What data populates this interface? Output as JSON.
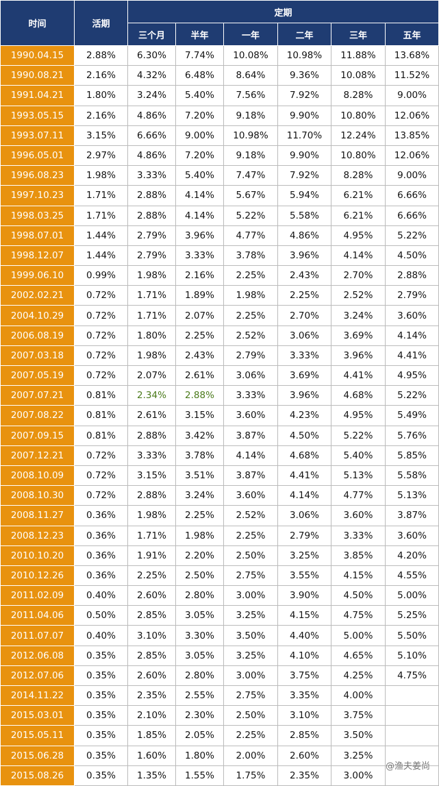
{
  "header": {
    "time": "时间",
    "demand": "活期",
    "fixed": "定期",
    "terms": [
      "三个月",
      "半年",
      "一年",
      "二年",
      "三年",
      "五年"
    ]
  },
  "table": {
    "rows": [
      [
        "1990.04.15",
        "2.88%",
        "6.30%",
        "7.74%",
        "10.08%",
        "10.98%",
        "11.88%",
        "13.68%"
      ],
      [
        "1990.08.21",
        "2.16%",
        "4.32%",
        "6.48%",
        "8.64%",
        "9.36%",
        "10.08%",
        "11.52%"
      ],
      [
        "1991.04.21",
        "1.80%",
        "3.24%",
        "5.40%",
        "7.56%",
        "7.92%",
        "8.28%",
        "9.00%"
      ],
      [
        "1993.05.15",
        "2.16%",
        "4.86%",
        "7.20%",
        "9.18%",
        "9.90%",
        "10.80%",
        "12.06%"
      ],
      [
        "1993.07.11",
        "3.15%",
        "6.66%",
        "9.00%",
        "10.98%",
        "11.70%",
        "12.24%",
        "13.85%"
      ],
      [
        "1996.05.01",
        "2.97%",
        "4.86%",
        "7.20%",
        "9.18%",
        "9.90%",
        "10.80%",
        "12.06%"
      ],
      [
        "1996.08.23",
        "1.98%",
        "3.33%",
        "5.40%",
        "7.47%",
        "7.92%",
        "8.28%",
        "9.00%"
      ],
      [
        "1997.10.23",
        "1.71%",
        "2.88%",
        "4.14%",
        "5.67%",
        "5.94%",
        "6.21%",
        "6.66%"
      ],
      [
        "1998.03.25",
        "1.71%",
        "2.88%",
        "4.14%",
        "5.22%",
        "5.58%",
        "6.21%",
        "6.66%"
      ],
      [
        "1998.07.01",
        "1.44%",
        "2.79%",
        "3.96%",
        "4.77%",
        "4.86%",
        "4.95%",
        "5.22%"
      ],
      [
        "1998.12.07",
        "1.44%",
        "2.79%",
        "3.33%",
        "3.78%",
        "3.96%",
        "4.14%",
        "4.50%"
      ],
      [
        "1999.06.10",
        "0.99%",
        "1.98%",
        "2.16%",
        "2.25%",
        "2.43%",
        "2.70%",
        "2.88%"
      ],
      [
        "2002.02.21",
        "0.72%",
        "1.71%",
        "1.89%",
        "1.98%",
        "2.25%",
        "2.52%",
        "2.79%"
      ],
      [
        "2004.10.29",
        "0.72%",
        "1.71%",
        "2.07%",
        "2.25%",
        "2.70%",
        "3.24%",
        "3.60%"
      ],
      [
        "2006.08.19",
        "0.72%",
        "1.80%",
        "2.25%",
        "2.52%",
        "3.06%",
        "3.69%",
        "4.14%"
      ],
      [
        "2007.03.18",
        "0.72%",
        "1.98%",
        "2.43%",
        "2.79%",
        "3.33%",
        "3.96%",
        "4.41%"
      ],
      [
        "2007.05.19",
        "0.72%",
        "2.07%",
        "2.61%",
        "3.06%",
        "3.69%",
        "4.41%",
        "4.95%"
      ],
      [
        "2007.07.21",
        "0.81%",
        "2.34%",
        "2.88%",
        "3.33%",
        "3.96%",
        "4.68%",
        "5.22%"
      ],
      [
        "2007.08.22",
        "0.81%",
        "2.61%",
        "3.15%",
        "3.60%",
        "4.23%",
        "4.95%",
        "5.49%"
      ],
      [
        "2007.09.15",
        "0.81%",
        "2.88%",
        "3.42%",
        "3.87%",
        "4.50%",
        "5.22%",
        "5.76%"
      ],
      [
        "2007.12.21",
        "0.72%",
        "3.33%",
        "3.78%",
        "4.14%",
        "4.68%",
        "5.40%",
        "5.85%"
      ],
      [
        "2008.10.09",
        "0.72%",
        "3.15%",
        "3.51%",
        "3.87%",
        "4.41%",
        "5.13%",
        "5.58%"
      ],
      [
        "2008.10.30",
        "0.72%",
        "2.88%",
        "3.24%",
        "3.60%",
        "4.14%",
        "4.77%",
        "5.13%"
      ],
      [
        "2008.11.27",
        "0.36%",
        "1.98%",
        "2.25%",
        "2.52%",
        "3.06%",
        "3.60%",
        "3.87%"
      ],
      [
        "2008.12.23",
        "0.36%",
        "1.71%",
        "1.98%",
        "2.25%",
        "2.79%",
        "3.33%",
        "3.60%"
      ],
      [
        "2010.10.20",
        "0.36%",
        "1.91%",
        "2.20%",
        "2.50%",
        "3.25%",
        "3.85%",
        "4.20%"
      ],
      [
        "2010.12.26",
        "0.36%",
        "2.25%",
        "2.50%",
        "2.75%",
        "3.55%",
        "4.15%",
        "4.55%"
      ],
      [
        "2011.02.09",
        "0.40%",
        "2.60%",
        "2.80%",
        "3.00%",
        "3.90%",
        "4.50%",
        "5.00%"
      ],
      [
        "2011.04.06",
        "0.50%",
        "2.85%",
        "3.05%",
        "3.25%",
        "4.15%",
        "4.75%",
        "5.25%"
      ],
      [
        "2011.07.07",
        "0.40%",
        "3.10%",
        "3.30%",
        "3.50%",
        "4.40%",
        "5.00%",
        "5.50%"
      ],
      [
        "2012.06.08",
        "0.35%",
        "2.85%",
        "3.05%",
        "3.25%",
        "4.10%",
        "4.65%",
        "5.10%"
      ],
      [
        "2012.07.06",
        "0.35%",
        "2.60%",
        "2.80%",
        "3.00%",
        "3.75%",
        "4.25%",
        "4.75%"
      ],
      [
        "2014.11.22",
        "0.35%",
        "2.35%",
        "2.55%",
        "2.75%",
        "3.35%",
        "4.00%",
        null
      ],
      [
        "2015.03.01",
        "0.35%",
        "2.10%",
        "2.30%",
        "2.50%",
        "3.10%",
        "3.75%",
        null
      ],
      [
        "2015.05.11",
        "0.35%",
        "1.85%",
        "2.05%",
        "2.25%",
        "2.85%",
        "3.50%",
        null
      ],
      [
        "2015.06.28",
        "0.35%",
        "1.60%",
        "1.80%",
        "2.00%",
        "2.60%",
        "3.25%",
        null
      ],
      [
        "2015.08.26",
        "0.35%",
        "1.35%",
        "1.55%",
        "1.75%",
        "2.35%",
        "3.00%",
        null
      ]
    ]
  },
  "watermark": "@渔夫姜尚"
}
